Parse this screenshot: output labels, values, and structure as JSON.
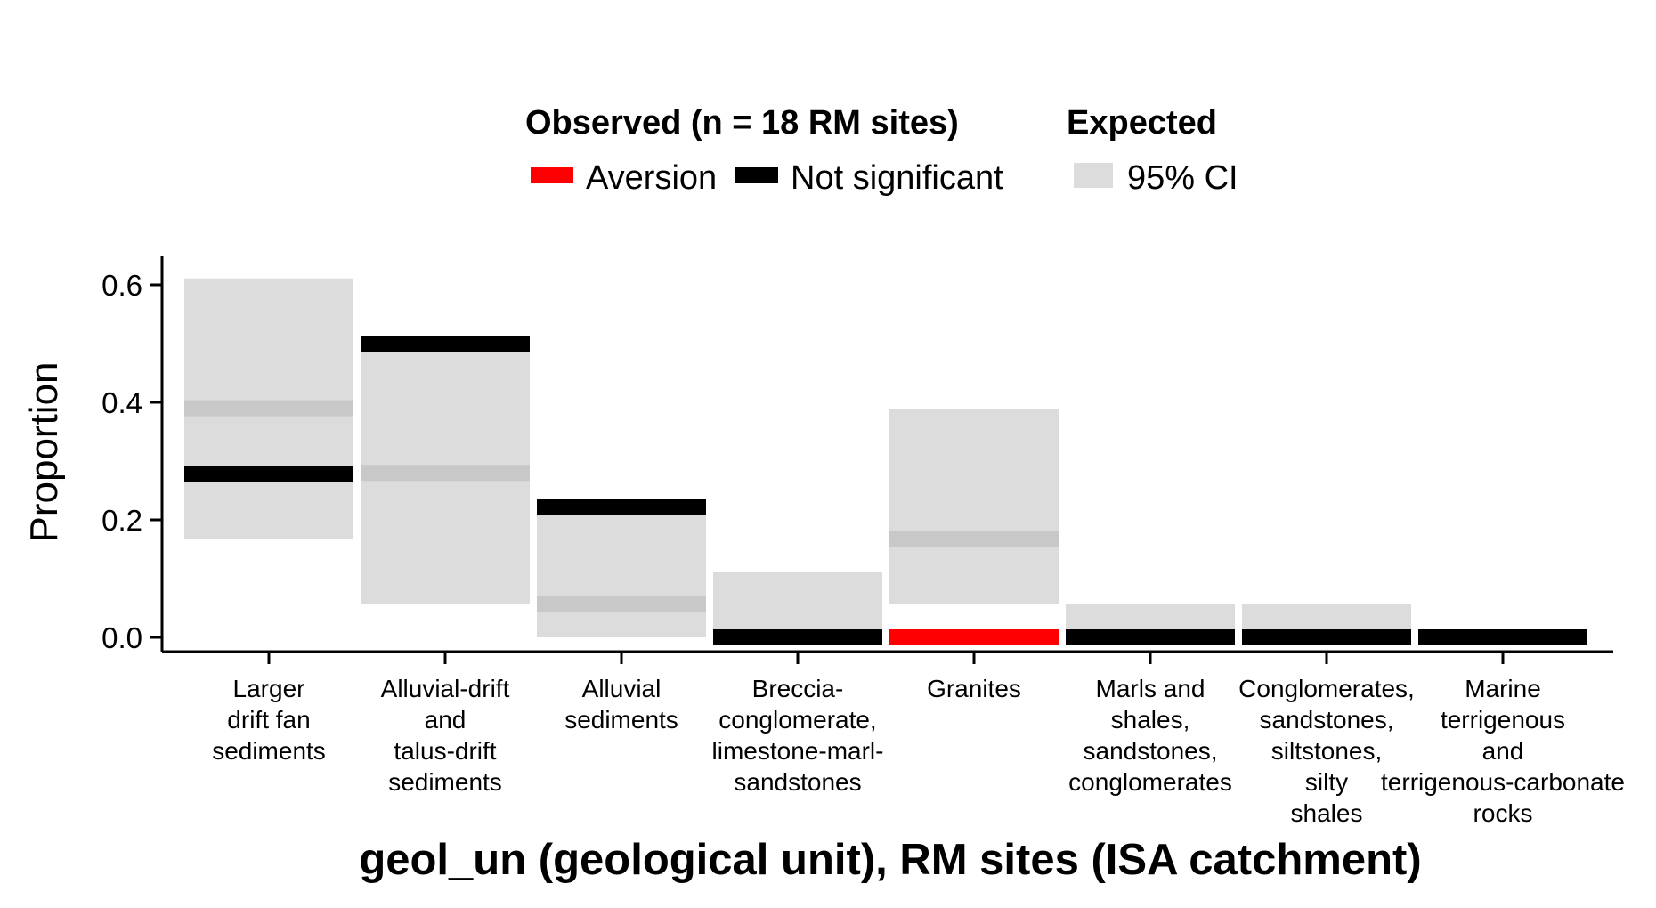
{
  "chart_data": {
    "type": "bar",
    "title": "",
    "xlabel": "geol_un (geological unit), RM sites (ISA catchment)",
    "ylabel": "Proportion",
    "ylim": [
      0,
      0.6
    ],
    "y_ticks": [
      "0.0",
      "0.2",
      "0.4",
      "0.6"
    ],
    "y_tick_values": [
      0,
      0.2,
      0.4,
      0.6
    ],
    "grid": false,
    "legend_placement": "top",
    "legend": {
      "observed_title": "Observed (n = 18 RM sites)",
      "expected_title": "Expected",
      "entries": [
        {
          "label": "Aversion",
          "color": "#ff0000"
        },
        {
          "label": "Not significant",
          "color": "#000000"
        }
      ],
      "expected_entry": {
        "label": "95% CI",
        "color": "#dcdcdc"
      }
    },
    "categories": [
      [
        "Larger",
        "drift fan",
        "sediments"
      ],
      [
        "Alluvial-drift",
        "and",
        "talus-drift",
        "sediments"
      ],
      [
        "Alluvial",
        "sediments"
      ],
      [
        "Breccia-",
        "conglomerate,",
        "limestone-marl-",
        "sandstones"
      ],
      [
        "Granites"
      ],
      [
        "Marls and",
        "shales,",
        "sandstones,",
        "conglomerates"
      ],
      [
        "Conglomerates,",
        "sandstones,",
        "siltstones,",
        "silty",
        "shales"
      ],
      [
        "Marine",
        "terrigenous",
        "and",
        "terrigenous-carbonate",
        "rocks"
      ]
    ],
    "series": [
      {
        "name": "Observed",
        "values": [
          0.278,
          0.5,
          0.222,
          0,
          0,
          0,
          0,
          0
        ],
        "status": [
          "Not significant",
          "Not significant",
          "Not significant",
          "Not significant",
          "Aversion",
          "Not significant",
          "Not significant",
          "Not significant"
        ]
      },
      {
        "name": "Expected",
        "values": [
          0.39,
          0.28,
          0.056,
          0,
          0.167,
          0,
          0,
          0
        ]
      },
      {
        "name": "95% CI",
        "lower": [
          0.167,
          0.056,
          0,
          0,
          0.056,
          0,
          0,
          0
        ],
        "upper": [
          0.611,
          0.5,
          0.222,
          0.111,
          0.389,
          0.056,
          0.056,
          0
        ]
      }
    ],
    "colors": {
      "ci": "#dcdcdc",
      "expected_band": "#c8c8c8",
      "aversion": "#ff0000",
      "not_significant": "#000000"
    }
  }
}
